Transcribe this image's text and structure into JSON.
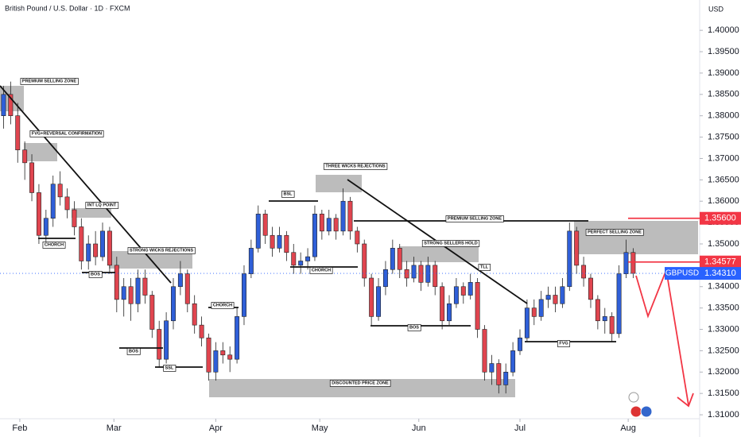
{
  "chart_data": {
    "type": "candlestick",
    "title": "British Pound / U.S. Dollar · 1D · FXCM",
    "currency": "USD",
    "up_color": "#2f5fd8",
    "down_color": "#e0454f",
    "grid": false,
    "xlim": [
      -0.5,
      98.4
    ],
    "xticks": [
      {
        "value": 2.3,
        "label": "Feb"
      },
      {
        "value": 15.6,
        "label": "Mar"
      },
      {
        "value": 30.0,
        "label": "Apr"
      },
      {
        "value": 44.7,
        "label": "May"
      },
      {
        "value": 58.7,
        "label": "Jun"
      },
      {
        "value": 73.0,
        "label": "Jul"
      },
      {
        "value": 88.3,
        "label": "Aug"
      }
    ],
    "ylim": [
      1.3048,
      1.4071
    ],
    "yticks": [
      {
        "value": 1.31,
        "label": "1.31000"
      },
      {
        "value": 1.315,
        "label": "1.31500"
      },
      {
        "value": 1.32,
        "label": "1.32000"
      },
      {
        "value": 1.325,
        "label": "1.32500"
      },
      {
        "value": 1.33,
        "label": "1.33000"
      },
      {
        "value": 1.335,
        "label": "1.33500"
      },
      {
        "value": 1.34,
        "label": "1.34000"
      },
      {
        "value": 1.345,
        "label": "1.34500"
      },
      {
        "value": 1.35,
        "label": "1.35000"
      },
      {
        "value": 1.355,
        "label": "1.35500"
      },
      {
        "value": 1.36,
        "label": "1.36000"
      },
      {
        "value": 1.365,
        "label": "1.36500"
      },
      {
        "value": 1.37,
        "label": "1.37000"
      },
      {
        "value": 1.375,
        "label": "1.37500"
      },
      {
        "value": 1.38,
        "label": "1.38000"
      },
      {
        "value": 1.385,
        "label": "1.38500"
      },
      {
        "value": 1.39,
        "label": "1.39000"
      },
      {
        "value": 1.395,
        "label": "1.39500"
      },
      {
        "value": 1.4,
        "label": "1.40000"
      }
    ],
    "price_tags": [
      {
        "value": 1.356,
        "label": "1.35600",
        "color": "#f23645"
      },
      {
        "value": 1.34577,
        "label": "1.34577",
        "color": "#f23645"
      },
      {
        "value": 1.3431,
        "name": "GBPUSD",
        "label": "1.34310",
        "color": "#2962ff"
      }
    ],
    "annotations": [
      "PREMIUM SELLING ZONE",
      "FVG+REVERSAL CONFIRMATION",
      "INT LQ POINT",
      "CHORCH",
      "STRONG WICKS REJECTIONS",
      "BOS",
      "BOS",
      "SSL",
      "CHORCH",
      "DISCOUNTED PRICE ZONE",
      "BSL",
      "THREE WICKS REJECTIONS",
      "CHORCH",
      "PREMIUM SELLING ZONE",
      "STRONG SELLERS HOLD",
      "TLL",
      "BOS",
      "FVG",
      "PERFECT SELLING ZONE"
    ],
    "ohlc": [
      [
        1.38,
        1.387,
        1.377,
        1.385
      ],
      [
        1.385,
        1.388,
        1.378,
        1.38
      ],
      [
        1.38,
        1.383,
        1.369,
        1.372
      ],
      [
        1.372,
        1.374,
        1.365,
        1.369
      ],
      [
        1.369,
        1.371,
        1.36,
        1.362
      ],
      [
        1.362,
        1.364,
        1.35,
        1.352
      ],
      [
        1.352,
        1.358,
        1.35,
        1.356
      ],
      [
        1.356,
        1.366,
        1.354,
        1.364
      ],
      [
        1.364,
        1.367,
        1.359,
        1.361
      ],
      [
        1.361,
        1.363,
        1.356,
        1.358
      ],
      [
        1.358,
        1.36,
        1.352,
        1.354
      ],
      [
        1.354,
        1.356,
        1.344,
        1.346
      ],
      [
        1.346,
        1.352,
        1.344,
        1.35
      ],
      [
        1.35,
        1.353,
        1.345,
        1.347
      ],
      [
        1.347,
        1.355,
        1.346,
        1.353
      ],
      [
        1.353,
        1.354,
        1.343,
        1.345
      ],
      [
        1.345,
        1.347,
        1.334,
        1.337
      ],
      [
        1.337,
        1.342,
        1.333,
        1.34
      ],
      [
        1.34,
        1.342,
        1.332,
        1.336
      ],
      [
        1.336,
        1.344,
        1.334,
        1.342
      ],
      [
        1.342,
        1.344,
        1.336,
        1.338
      ],
      [
        1.338,
        1.339,
        1.328,
        1.33
      ],
      [
        1.33,
        1.332,
        1.321,
        1.323
      ],
      [
        1.323,
        1.334,
        1.322,
        1.332
      ],
      [
        1.332,
        1.342,
        1.33,
        1.34
      ],
      [
        1.34,
        1.346,
        1.338,
        1.343
      ],
      [
        1.343,
        1.344,
        1.334,
        1.336
      ],
      [
        1.336,
        1.338,
        1.329,
        1.331
      ],
      [
        1.331,
        1.333,
        1.326,
        1.328
      ],
      [
        1.328,
        1.329,
        1.318,
        1.32
      ],
      [
        1.32,
        1.327,
        1.318,
        1.325
      ],
      [
        1.325,
        1.327,
        1.322,
        1.324
      ],
      [
        1.324,
        1.326,
        1.32,
        1.323
      ],
      [
        1.323,
        1.335,
        1.322,
        1.333
      ],
      [
        1.333,
        1.345,
        1.331,
        1.343
      ],
      [
        1.343,
        1.351,
        1.342,
        1.349
      ],
      [
        1.349,
        1.359,
        1.348,
        1.357
      ],
      [
        1.357,
        1.358,
        1.35,
        1.352
      ],
      [
        1.352,
        1.354,
        1.347,
        1.349
      ],
      [
        1.349,
        1.354,
        1.348,
        1.352
      ],
      [
        1.352,
        1.353,
        1.346,
        1.348
      ],
      [
        1.348,
        1.35,
        1.343,
        1.345
      ],
      [
        1.345,
        1.348,
        1.343,
        1.346
      ],
      [
        1.346,
        1.349,
        1.344,
        1.347
      ],
      [
        1.347,
        1.359,
        1.346,
        1.357
      ],
      [
        1.357,
        1.358,
        1.351,
        1.353
      ],
      [
        1.353,
        1.358,
        1.352,
        1.356
      ],
      [
        1.356,
        1.357,
        1.351,
        1.353
      ],
      [
        1.353,
        1.363,
        1.352,
        1.36
      ],
      [
        1.36,
        1.361,
        1.351,
        1.353
      ],
      [
        1.353,
        1.354,
        1.348,
        1.35
      ],
      [
        1.35,
        1.351,
        1.34,
        1.342
      ],
      [
        1.342,
        1.343,
        1.331,
        1.333
      ],
      [
        1.333,
        1.342,
        1.332,
        1.34
      ],
      [
        1.34,
        1.346,
        1.338,
        1.344
      ],
      [
        1.344,
        1.351,
        1.343,
        1.349
      ],
      [
        1.349,
        1.35,
        1.342,
        1.344
      ],
      [
        1.344,
        1.346,
        1.34,
        1.342
      ],
      [
        1.342,
        1.347,
        1.341,
        1.345
      ],
      [
        1.345,
        1.346,
        1.339,
        1.341
      ],
      [
        1.341,
        1.347,
        1.34,
        1.345
      ],
      [
        1.345,
        1.346,
        1.338,
        1.34
      ],
      [
        1.34,
        1.341,
        1.33,
        1.332
      ],
      [
        1.332,
        1.338,
        1.331,
        1.336
      ],
      [
        1.336,
        1.342,
        1.335,
        1.34
      ],
      [
        1.34,
        1.341,
        1.336,
        1.338
      ],
      [
        1.338,
        1.343,
        1.337,
        1.341
      ],
      [
        1.341,
        1.342,
        1.328,
        1.33
      ],
      [
        1.33,
        1.331,
        1.318,
        1.32
      ],
      [
        1.32,
        1.324,
        1.317,
        1.322
      ],
      [
        1.322,
        1.323,
        1.315,
        1.317
      ],
      [
        1.317,
        1.322,
        1.315,
        1.32
      ],
      [
        1.32,
        1.327,
        1.319,
        1.325
      ],
      [
        1.325,
        1.33,
        1.324,
        1.328
      ],
      [
        1.328,
        1.337,
        1.327,
        1.335
      ],
      [
        1.335,
        1.337,
        1.331,
        1.333
      ],
      [
        1.333,
        1.339,
        1.332,
        1.337
      ],
      [
        1.337,
        1.34,
        1.335,
        1.338
      ],
      [
        1.338,
        1.34,
        1.334,
        1.336
      ],
      [
        1.336,
        1.342,
        1.335,
        1.34
      ],
      [
        1.34,
        1.355,
        1.339,
        1.353
      ],
      [
        1.353,
        1.354,
        1.343,
        1.345
      ],
      [
        1.345,
        1.347,
        1.34,
        1.342
      ],
      [
        1.342,
        1.343,
        1.335,
        1.337
      ],
      [
        1.337,
        1.338,
        1.33,
        1.332
      ],
      [
        1.332,
        1.335,
        1.329,
        1.333
      ],
      [
        1.333,
        1.334,
        1.327,
        1.329
      ],
      [
        1.329,
        1.345,
        1.328,
        1.343
      ],
      [
        1.343,
        1.351,
        1.342,
        1.348
      ],
      [
        1.348,
        1.349,
        1.342,
        1.3431
      ]
    ]
  }
}
